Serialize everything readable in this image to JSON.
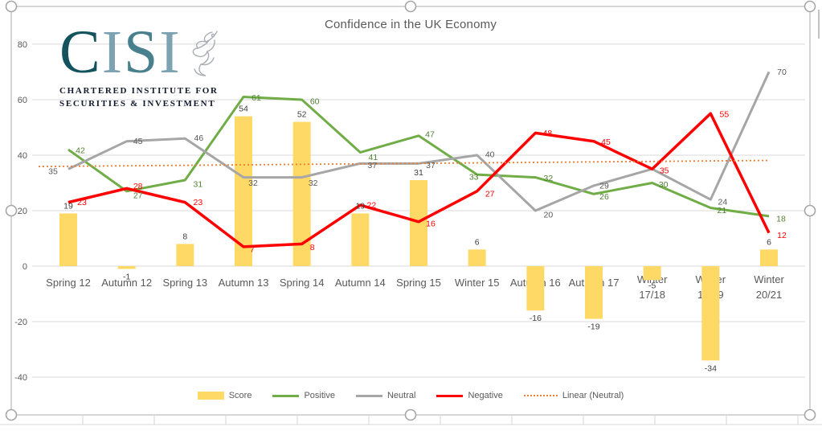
{
  "title": "Confidence in the UK Economy",
  "logo": {
    "letters": [
      {
        "ch": "C",
        "color": "#14525e"
      },
      {
        "ch": "I",
        "color": "#7da2b2"
      },
      {
        "ch": "S",
        "color": "#48808e"
      },
      {
        "ch": "I",
        "color": "#7da2b2"
      }
    ],
    "line1": "CHARTERED INSTITUTE FOR",
    "line2": "SECURITIES & INVESTMENT"
  },
  "chart_data": {
    "type": "combo (bar + line)",
    "title": "Confidence in the UK Economy",
    "categories": [
      "Spring 12",
      "Autumn 12",
      "Spring 13",
      "Autumn 13",
      "Spring 14",
      "Autumn 14",
      "Spring 15",
      "Winter 15",
      "Autumn 16",
      "Autumn 17",
      "Winter 17/18",
      "Winter 18/19",
      "Winter 20/21"
    ],
    "series": [
      {
        "name": "Score",
        "type": "bar",
        "color": "#FFD966",
        "label_color": "#404040",
        "values": [
          19,
          -1,
          8,
          54,
          52,
          19,
          31,
          6,
          -16,
          -19,
          -5,
          -34,
          6
        ]
      },
      {
        "name": "Positive",
        "type": "line",
        "color": "#70AD47",
        "label_color": "#538135",
        "values": [
          42,
          27,
          31,
          61,
          60,
          41,
          47,
          33,
          32,
          26,
          30,
          21,
          18
        ],
        "label_offset": [
          [
            15,
            1
          ],
          [
            14,
            5
          ],
          [
            16,
            5
          ],
          [
            16,
            1
          ],
          [
            16,
            2
          ],
          [
            16,
            6
          ],
          [
            14,
            -2
          ],
          [
            -4,
            3
          ],
          [
            16,
            1
          ],
          [
            13,
            3
          ],
          [
            14,
            2
          ],
          [
            14,
            3
          ],
          [
            15,
            3
          ]
        ]
      },
      {
        "name": "Neutral",
        "type": "line",
        "color": "#A6A6A6",
        "label_color": "#595959",
        "values": [
          35,
          45,
          46,
          32,
          32,
          37,
          37,
          40,
          20,
          29,
          35,
          24,
          70
        ],
        "hidden_labels": [
          10
        ],
        "label_offset": [
          [
            -19,
            3
          ],
          [
            14,
            0
          ],
          [
            17,
            -1
          ],
          [
            12,
            7
          ],
          [
            14,
            7
          ],
          [
            15,
            2
          ],
          [
            15,
            2
          ],
          [
            16,
            -1
          ],
          [
            16,
            5
          ],
          [
            13,
            0
          ],
          [
            0,
            0
          ],
          [
            15,
            3
          ],
          [
            16,
            0
          ]
        ]
      },
      {
        "name": "Negative",
        "type": "line",
        "color": "#FF0000",
        "label_color": "#FF0000",
        "values": [
          23,
          28,
          23,
          7,
          8,
          22,
          16,
          27,
          48,
          45,
          35,
          55,
          12
        ],
        "label_offset": [
          [
            17,
            0
          ],
          [
            14,
            -3
          ],
          [
            16,
            0
          ],
          [
            11,
            3
          ],
          [
            13,
            4
          ],
          [
            14,
            0
          ],
          [
            15,
            2
          ],
          [
            16,
            3
          ],
          [
            15,
            0
          ],
          [
            15,
            1
          ],
          [
            15,
            2
          ],
          [
            17,
            1
          ],
          [
            16,
            3
          ]
        ]
      },
      {
        "name": "Linear (Neutral)",
        "type": "trendline",
        "color": "#ED7D31",
        "line_style": "dotted",
        "start_value": 35.9,
        "end_value": 38.1
      }
    ],
    "y_axis": {
      "min": -40,
      "max": 80,
      "step": 20,
      "tick_labels": [
        "80",
        "60",
        "40",
        "20",
        "0",
        "-20",
        "-40"
      ]
    },
    "x_axis": {
      "labels_color": "#595959"
    },
    "gridlines": true,
    "legend": {
      "position": "bottom",
      "items": [
        "Score",
        "Positive",
        "Neutral",
        "Negative",
        "Linear (Neutral)"
      ]
    }
  },
  "colors": {
    "gridline": "#D9D9D9",
    "axis_text": "#595959",
    "frame": "#BFBFBF",
    "handle_stroke": "#A6A6A6",
    "sheet_line": "#D5D5D5"
  },
  "selection": {
    "selected": true
  }
}
